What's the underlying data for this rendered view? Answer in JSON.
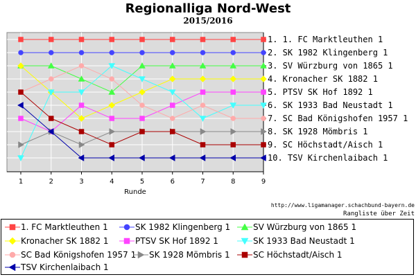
{
  "title": "Regionalliga Nord-West",
  "subtitle": "2015/2016",
  "credit": "http://www.ligamanager.schachbund-bayern.de",
  "caption": "Rangliste über Zeit",
  "chart_data": {
    "type": "line",
    "xlabel": "Runde",
    "x": [
      1,
      2,
      3,
      4,
      5,
      6,
      7,
      8,
      9
    ],
    "ylim": [
      10,
      1
    ],
    "y_reversed": true,
    "grid": true,
    "legend_position": "bottom",
    "right_labels": [
      "1. 1. FC Marktleuthen 1",
      "2. SK 1982 Klingenberg 1",
      "3. SV Würzburg von 1865 1",
      "4. Kronacher SK 1882 1",
      "5. PTSV SK Hof 1892 1",
      "6. SK 1933 Bad Neustadt 1",
      "7. SC Bad Königshofen 1957 1",
      "8. SK 1928 Mömbris 1",
      "9. SC Höchstadt/Aisch 1",
      "10. TSV Kirchenlaibach 1"
    ],
    "series": [
      {
        "name": "1. FC Marktleuthen 1",
        "color": "#ff4444",
        "marker": "square",
        "values": [
          1,
          1,
          1,
          1,
          1,
          1,
          1,
          1,
          1
        ]
      },
      {
        "name": "SK 1982 Klingenberg 1",
        "color": "#4444ff",
        "marker": "circle",
        "values": [
          2,
          2,
          2,
          2,
          2,
          2,
          2,
          2,
          2
        ]
      },
      {
        "name": "SV Würzburg von 1865 1",
        "color": "#44ff44",
        "marker": "triangle-up",
        "values": [
          3,
          3,
          4,
          5,
          3,
          3,
          3,
          3,
          3
        ]
      },
      {
        "name": "Kronacher SK 1882 1",
        "color": "#ffff00",
        "marker": "diamond",
        "values": [
          3,
          5,
          7,
          6,
          5,
          4,
          4,
          4,
          4
        ]
      },
      {
        "name": "PTSV SK Hof 1892 1",
        "color": "#ff44ff",
        "marker": "square",
        "values": [
          7,
          8,
          6,
          7,
          7,
          6,
          5,
          5,
          5
        ]
      },
      {
        "name": "SK 1933 Bad Neustadt 1",
        "color": "#44ffff",
        "marker": "triangle-down",
        "values": [
          10,
          5,
          5,
          3,
          4,
          5,
          7,
          6,
          6
        ]
      },
      {
        "name": "SC Bad Königshofen 1957 1",
        "color": "#ffaaaa",
        "marker": "circle",
        "values": [
          5,
          4,
          3,
          4,
          6,
          7,
          6,
          7,
          7
        ]
      },
      {
        "name": "SK 1928 Mömbris 1",
        "color": "#888888",
        "marker": "triangle-right",
        "values": [
          9,
          8,
          9,
          8,
          8,
          8,
          8,
          8,
          8
        ]
      },
      {
        "name": "SC Höchstadt/Aisch 1",
        "color": "#aa0000",
        "marker": "square",
        "values": [
          5,
          7,
          8,
          9,
          8,
          8,
          9,
          9,
          9
        ]
      },
      {
        "name": "TSV Kirchenlaibach 1",
        "color": "#0000aa",
        "marker": "triangle-left",
        "values": [
          6,
          8,
          10,
          10,
          10,
          10,
          10,
          10,
          10
        ]
      }
    ]
  }
}
